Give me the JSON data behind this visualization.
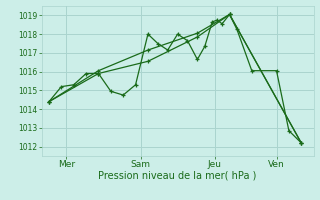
{
  "xlabel": "Pression niveau de la mer( hPa )",
  "bg_color": "#cceee8",
  "grid_color": "#aad4ce",
  "line_color": "#1a6b1a",
  "ylim": [
    1011.5,
    1019.5
  ],
  "yticks": [
    1012,
    1013,
    1014,
    1015,
    1016,
    1017,
    1018,
    1019
  ],
  "xtick_labels": [
    "Mer",
    "Sam",
    "Jeu",
    "Ven"
  ],
  "xtick_positions": [
    1,
    4,
    7,
    9.5
  ],
  "xlim": [
    0,
    11
  ],
  "series1": [
    [
      0.3,
      1014.4
    ],
    [
      0.8,
      1015.2
    ],
    [
      1.3,
      1015.3
    ],
    [
      1.8,
      1015.9
    ],
    [
      2.3,
      1015.9
    ],
    [
      2.8,
      1014.95
    ],
    [
      3.3,
      1014.75
    ],
    [
      3.8,
      1015.3
    ],
    [
      4.3,
      1018.0
    ],
    [
      4.7,
      1017.5
    ],
    [
      5.1,
      1017.15
    ],
    [
      5.5,
      1018.0
    ],
    [
      5.9,
      1017.65
    ],
    [
      6.3,
      1016.65
    ],
    [
      6.6,
      1017.35
    ],
    [
      6.9,
      1018.65
    ],
    [
      7.1,
      1018.75
    ],
    [
      7.3,
      1018.55
    ],
    [
      7.6,
      1019.05
    ],
    [
      7.9,
      1018.25
    ],
    [
      8.5,
      1016.05
    ],
    [
      9.5,
      1016.05
    ],
    [
      10.0,
      1012.85
    ],
    [
      10.5,
      1012.2
    ]
  ],
  "series2": [
    [
      0.3,
      1014.4
    ],
    [
      2.3,
      1015.9
    ],
    [
      4.3,
      1016.55
    ],
    [
      6.3,
      1017.85
    ],
    [
      7.6,
      1019.05
    ],
    [
      10.5,
      1012.2
    ]
  ],
  "series3": [
    [
      0.3,
      1014.4
    ],
    [
      2.3,
      1016.05
    ],
    [
      4.3,
      1017.15
    ],
    [
      6.3,
      1018.05
    ],
    [
      7.6,
      1019.05
    ],
    [
      10.5,
      1012.2
    ]
  ]
}
